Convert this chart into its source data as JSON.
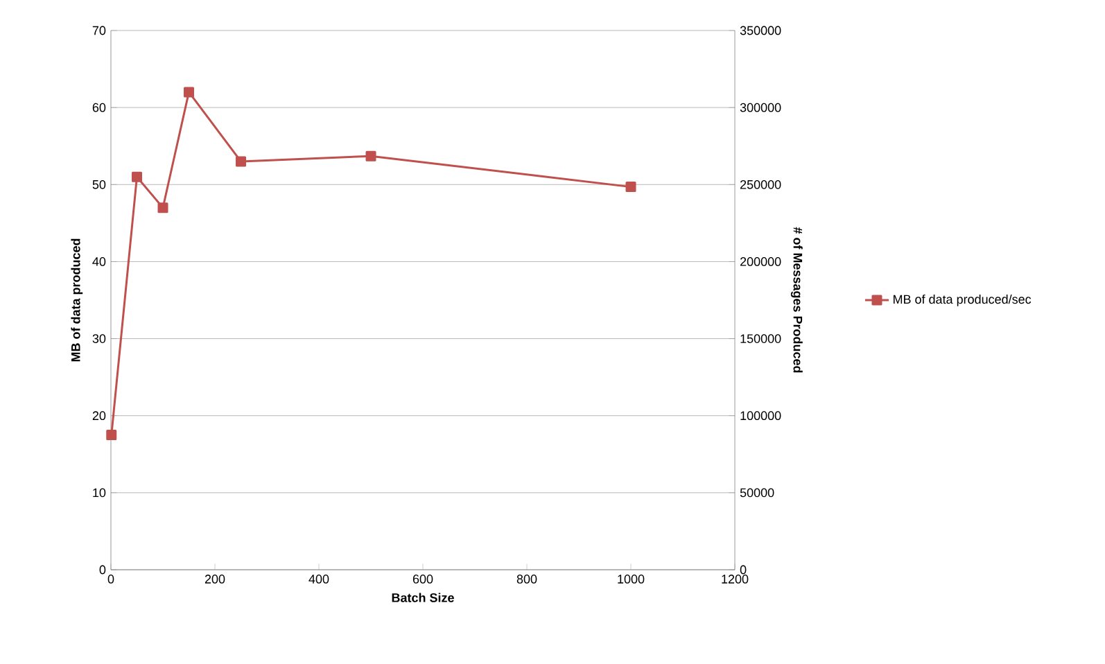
{
  "chart_data": {
    "type": "line",
    "xlabel": "Batch Size",
    "ylabel": "MB of data produced",
    "y2label": "# of Messages Produced",
    "series": [
      {
        "name": "MB of data produced/sec",
        "color": "#c0504d",
        "x": [
          1,
          50,
          100,
          150,
          250,
          500,
          1000
        ],
        "values": [
          17.5,
          51,
          47,
          62,
          53,
          53.7,
          49.7
        ]
      }
    ],
    "xlim": [
      0,
      1200
    ],
    "xticks": [
      0,
      200,
      400,
      600,
      800,
      1000,
      1200
    ],
    "ylim": [
      0,
      70
    ],
    "yticks": [
      0,
      10,
      20,
      30,
      40,
      50,
      60,
      70
    ],
    "y2lim": [
      0,
      350000
    ],
    "y2ticks": [
      0,
      50000,
      100000,
      150000,
      200000,
      250000,
      300000,
      350000
    ],
    "grid": "y",
    "legend": "right",
    "marker": "square",
    "line_style": "solid"
  }
}
